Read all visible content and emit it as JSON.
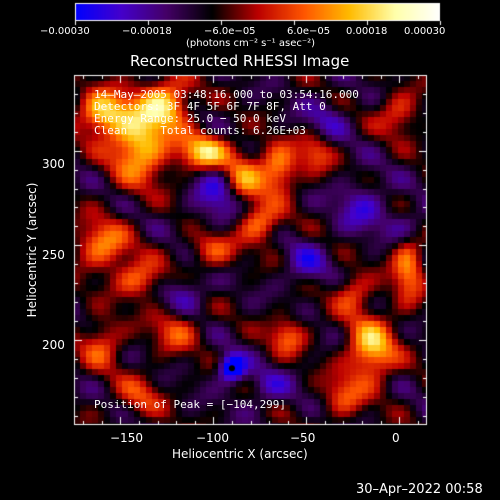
{
  "chart_data": {
    "type": "heatmap",
    "title": "Reconstructed RHESSI Image",
    "xlabel": "Heliocentric X (arcsec)",
    "ylabel": "Heliocentric Y (arcsec)",
    "xlim": [
      -175,
      15
    ],
    "ylim": [
      155,
      340
    ],
    "x_ticks": [
      -150,
      -100,
      -50,
      0
    ],
    "y_ticks": [
      200,
      250,
      300
    ],
    "x_tick_labels": [
      "−150",
      "−100",
      "−50",
      "0"
    ],
    "y_tick_labels": [
      "200",
      "250",
      "300"
    ],
    "colorbar": {
      "range": [
        -0.0003,
        0.0003
      ],
      "ticks": [
        -0.0003,
        -0.00018,
        -6e-05,
        6e-05,
        0.00018,
        0.0003
      ],
      "tick_labels": [
        "−0.00030",
        "−0.00018",
        "−6.0e−05",
        "6.0e−05",
        "0.00018",
        "0.00030"
      ],
      "unit_label": "(photons cm⁻² s⁻¹ asec⁻²)",
      "colors": [
        "#0000ff",
        "#4400cc",
        "#440066",
        "#000000",
        "#bb0000",
        "#ff5500",
        "#ffbb00",
        "#ffffaa",
        "#ffffff"
      ]
    },
    "annotations": [
      "14–May–2005 03:48:16.000 to 03:54:16.000",
      "Detectors: 3F 4F 5F 6F 7F 8F, Att 0",
      "Energy Range: 25.0 − 50.0 keV",
      "Clean     Total counts: 6.26E+03"
    ],
    "peak_label": "Position of Peak = [−104,299]",
    "peak": {
      "x": -104,
      "y": 299
    },
    "blue_minimum": {
      "x": -90,
      "y": 185
    },
    "sources": [
      {
        "x": -160,
        "y": 320,
        "amp": 0.00026,
        "sx": 9,
        "sy": 8
      },
      {
        "x": -140,
        "y": 305,
        "amp": 0.00028,
        "sx": 11,
        "sy": 15
      },
      {
        "x": -125,
        "y": 325,
        "amp": 0.00024,
        "sx": 9,
        "sy": 9
      },
      {
        "x": -104,
        "y": 299,
        "amp": 0.0003,
        "sx": 10,
        "sy": 7
      },
      {
        "x": -85,
        "y": 285,
        "amp": 0.00025,
        "sx": 8,
        "sy": 10
      },
      {
        "x": -65,
        "y": 290,
        "amp": 0.00022,
        "sx": 7,
        "sy": 9
      },
      {
        "x": -45,
        "y": 300,
        "amp": 0.00015,
        "sx": 7,
        "sy": 8
      },
      {
        "x": -160,
        "y": 250,
        "amp": 0.0002,
        "sx": 10,
        "sy": 9
      },
      {
        "x": -140,
        "y": 232,
        "amp": 0.00018,
        "sx": 9,
        "sy": 7
      },
      {
        "x": -100,
        "y": 248,
        "amp": 0.00016,
        "sx": 9,
        "sy": 7
      },
      {
        "x": -75,
        "y": 262,
        "amp": 0.0002,
        "sx": 8,
        "sy": 7
      },
      {
        "x": -120,
        "y": 205,
        "amp": 0.00014,
        "sx": 9,
        "sy": 8
      },
      {
        "x": -160,
        "y": 198,
        "amp": 0.00015,
        "sx": 8,
        "sy": 9
      },
      {
        "x": -60,
        "y": 202,
        "amp": 0.00016,
        "sx": 7,
        "sy": 7
      },
      {
        "x": -25,
        "y": 225,
        "amp": 0.00015,
        "sx": 7,
        "sy": 7
      },
      {
        "x": -15,
        "y": 195,
        "amp": 0.00026,
        "sx": 9,
        "sy": 12
      },
      {
        "x": 5,
        "y": 240,
        "amp": 0.0002,
        "sx": 6,
        "sy": 14
      },
      {
        "x": 0,
        "y": 320,
        "amp": 0.00014,
        "sx": 8,
        "sy": 8
      },
      {
        "x": -140,
        "y": 170,
        "amp": 0.00012,
        "sx": 9,
        "sy": 8
      },
      {
        "x": -30,
        "y": 170,
        "amp": 0.00014,
        "sx": 8,
        "sy": 8
      },
      {
        "x": -90,
        "y": 185,
        "amp": -0.0003,
        "sx": 5,
        "sy": 5
      },
      {
        "x": -95,
        "y": 280,
        "amp": -0.00018,
        "sx": 10,
        "sy": 14
      },
      {
        "x": -20,
        "y": 270,
        "amp": -0.00012,
        "sx": 10,
        "sy": 10
      },
      {
        "x": -40,
        "y": 315,
        "amp": -0.0001,
        "sx": 9,
        "sy": 9
      },
      {
        "x": 5,
        "y": 260,
        "amp": -0.00013,
        "sx": 7,
        "sy": 7
      },
      {
        "x": -115,
        "y": 225,
        "amp": -0.00012,
        "sx": 8,
        "sy": 7
      },
      {
        "x": -50,
        "y": 240,
        "amp": -0.00012,
        "sx": 8,
        "sy": 8
      },
      {
        "x": -70,
        "y": 175,
        "amp": -0.0001,
        "sx": 9,
        "sy": 7
      }
    ],
    "background": -9e-05,
    "grid": false
  },
  "footer": {
    "timestamp": "30–Apr–2022 00:58"
  }
}
